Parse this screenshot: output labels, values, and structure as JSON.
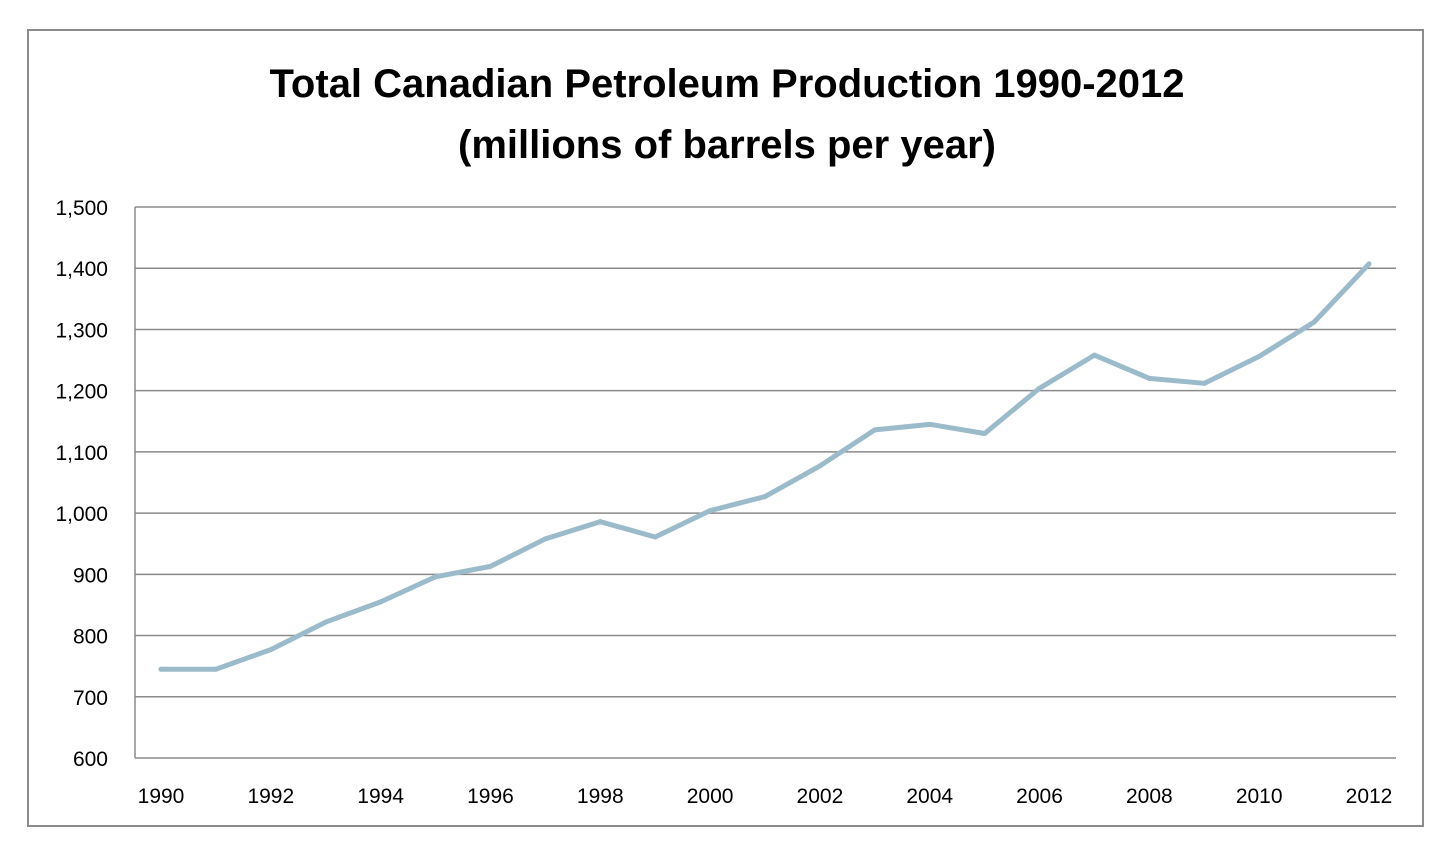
{
  "chart_data": {
    "type": "line",
    "title": "Total Canadian Petroleum Production 1990-2012",
    "subtitle": "(millions of barrels per year)",
    "xlabel": "",
    "ylabel": "",
    "ylim": [
      600,
      1500
    ],
    "y_ticks": [
      600,
      700,
      800,
      900,
      1000,
      1100,
      1200,
      1300,
      1400,
      1500
    ],
    "y_tick_labels": [
      "600",
      "700",
      "800",
      "900",
      "1,000",
      "1,100",
      "1,200",
      "1,300",
      "1,400",
      "1,500"
    ],
    "x_tick_labels": [
      "1990",
      "1992",
      "1994",
      "1996",
      "1998",
      "2000",
      "2002",
      "2004",
      "2006",
      "2008",
      "2010",
      "2012"
    ],
    "grid": true,
    "legend": "none",
    "line_color": "#9bbbca",
    "x": [
      1990,
      1991,
      1992,
      1993,
      1994,
      1995,
      1996,
      1997,
      1998,
      1999,
      2000,
      2001,
      2002,
      2003,
      2004,
      2005,
      2006,
      2007,
      2008,
      2009,
      2010,
      2011,
      2012
    ],
    "series": [
      {
        "values": [
          745,
          745,
          777,
          822,
          855,
          896,
          913,
          958,
          986,
          961,
          1004,
          1027,
          1077,
          1136,
          1145,
          1130,
          1204,
          1258,
          1220,
          1212,
          1256,
          1312,
          1407
        ]
      }
    ]
  }
}
